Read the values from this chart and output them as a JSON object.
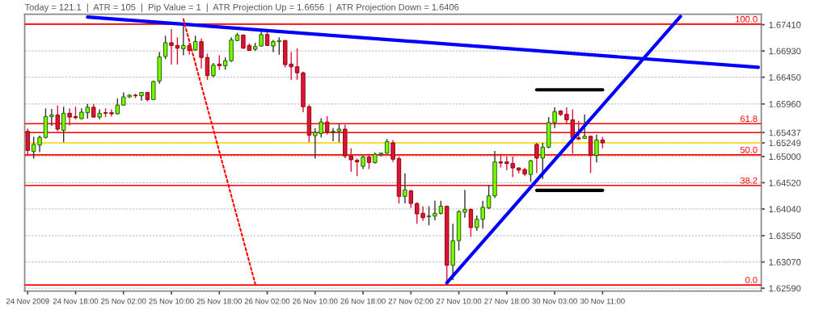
{
  "chart_data": {
    "type": "candlestick",
    "title": "Today = 121.1  |  ATR = 105  |  Pip Value = 1  |  ATR Projection Up = 1.6656  |  ATR Projection Down = 1.6406",
    "categories": [
      "24 Nov 2009",
      null,
      null,
      null,
      null,
      null,
      null,
      null,
      "24 Nov 18:00",
      null,
      null,
      null,
      null,
      null,
      null,
      null,
      "25 Nov 02:00",
      null,
      null,
      null,
      null,
      null,
      null,
      null,
      "25 Nov 10:00",
      null,
      null,
      null,
      null,
      null,
      null,
      null,
      "25 Nov 18:00",
      null,
      null,
      null,
      null,
      null,
      null,
      null,
      "26 Nov 02:00",
      null,
      null,
      null,
      null,
      null,
      null,
      null,
      "26 Nov 10:00",
      null,
      null,
      null,
      null,
      null,
      null,
      null,
      "26 Nov 18:00",
      null,
      null,
      null,
      null,
      null,
      null,
      null,
      "27 Nov 02:00",
      null,
      null,
      null,
      null,
      null,
      null,
      null,
      "27 Nov 10:00",
      null,
      null,
      null,
      null,
      null,
      null,
      null,
      "27 Nov 18:00",
      null,
      null,
      null,
      null,
      null,
      null,
      null,
      "30 Nov 03:00",
      null,
      null,
      null,
      null,
      null,
      null,
      null,
      "30 Nov 11:00",
      null,
      null,
      null,
      null,
      null,
      null,
      null,
      null,
      null,
      null,
      null,
      null,
      null,
      null,
      null,
      null,
      null,
      null,
      null,
      null,
      null,
      null,
      null,
      null,
      null,
      null
    ],
    "ohlc": [
      [
        1.6546,
        1.6551,
        1.6501,
        1.6511
      ],
      [
        1.6509,
        1.6536,
        1.6496,
        1.6522
      ],
      [
        1.6521,
        1.6538,
        1.6508,
        1.6535
      ],
      [
        1.6535,
        1.6588,
        1.6533,
        1.6573
      ],
      [
        1.6573,
        1.6587,
        1.6556,
        1.6576
      ],
      [
        1.6576,
        1.6593,
        1.6546,
        1.655
      ],
      [
        1.6548,
        1.6591,
        1.6526,
        1.6579
      ],
      [
        1.6579,
        1.6588,
        1.6557,
        1.6572
      ],
      [
        1.6573,
        1.6591,
        1.6568,
        1.6571
      ],
      [
        1.6569,
        1.6588,
        1.6568,
        1.6581
      ],
      [
        1.658,
        1.6596,
        1.6569,
        1.659
      ],
      [
        1.659,
        1.6596,
        1.6571,
        1.6572
      ],
      [
        1.6572,
        1.6586,
        1.6568,
        1.6579
      ],
      [
        1.658,
        1.6588,
        1.6572,
        1.6579
      ],
      [
        1.658,
        1.6586,
        1.6573,
        1.6578
      ],
      [
        1.6578,
        1.6606,
        1.6577,
        1.6594
      ],
      [
        1.6594,
        1.6617,
        1.6593,
        1.6609
      ],
      [
        1.6609,
        1.6614,
        1.6607,
        1.6612
      ],
      [
        1.6612,
        1.6615,
        1.6607,
        1.6611
      ],
      [
        1.6611,
        1.6618,
        1.6602,
        1.6617
      ],
      [
        1.6617,
        1.6618,
        1.6601,
        1.6604
      ],
      [
        1.6604,
        1.6639,
        1.6603,
        1.6637
      ],
      [
        1.6638,
        1.6691,
        1.6633,
        1.6682
      ],
      [
        1.6683,
        1.6721,
        1.6678,
        1.6708
      ],
      [
        1.6708,
        1.6733,
        1.6668,
        1.6703
      ],
      [
        1.6703,
        1.6718,
        1.6668,
        1.6698
      ],
      [
        1.6697,
        1.6743,
        1.6685,
        1.6703
      ],
      [
        1.6703,
        1.6708,
        1.6686,
        1.6694
      ],
      [
        1.6695,
        1.6721,
        1.6693,
        1.671
      ],
      [
        1.671,
        1.6716,
        1.6661,
        1.6681
      ],
      [
        1.6681,
        1.6688,
        1.664,
        1.6648
      ],
      [
        1.6648,
        1.6671,
        1.6645,
        1.6667
      ],
      [
        1.6669,
        1.6685,
        1.6658,
        1.6666
      ],
      [
        1.6666,
        1.6681,
        1.6659,
        1.6675
      ],
      [
        1.6675,
        1.6718,
        1.6673,
        1.6713
      ],
      [
        1.6712,
        1.6726,
        1.6711,
        1.6722
      ],
      [
        1.6722,
        1.6723,
        1.6697,
        1.6698
      ],
      [
        1.6703,
        1.6707,
        1.6693,
        1.6694
      ],
      [
        1.6696,
        1.6708,
        1.6693,
        1.6701
      ],
      [
        1.6702,
        1.6731,
        1.6701,
        1.6723
      ],
      [
        1.6723,
        1.6731,
        1.6702,
        1.6703
      ],
      [
        1.6702,
        1.6713,
        1.6691,
        1.671
      ],
      [
        1.671,
        1.6718,
        1.6686,
        1.6712
      ],
      [
        1.6712,
        1.6713,
        1.6663,
        1.6668
      ],
      [
        1.6669,
        1.6691,
        1.664,
        1.6664
      ],
      [
        1.6664,
        1.6698,
        1.664,
        1.6653
      ],
      [
        1.6653,
        1.6655,
        1.6581,
        1.6591
      ],
      [
        1.6591,
        1.6595,
        1.6526,
        1.6539
      ],
      [
        1.6538,
        1.6552,
        1.6496,
        1.6544
      ],
      [
        1.6542,
        1.657,
        1.6535,
        1.6563
      ],
      [
        1.6563,
        1.6574,
        1.654,
        1.6545
      ],
      [
        1.6545,
        1.6552,
        1.6528,
        1.6546
      ],
      [
        1.6546,
        1.656,
        1.6526,
        1.655
      ],
      [
        1.655,
        1.6558,
        1.6497,
        1.6501
      ],
      [
        1.6501,
        1.6515,
        1.6472,
        1.6494
      ],
      [
        1.6493,
        1.6496,
        1.6464,
        1.649
      ],
      [
        1.6482,
        1.6502,
        1.6477,
        1.6499
      ],
      [
        1.6499,
        1.6505,
        1.6477,
        1.6489
      ],
      [
        1.6489,
        1.6507,
        1.6487,
        1.6504
      ],
      [
        1.6504,
        1.6507,
        1.65,
        1.6506
      ],
      [
        1.6506,
        1.6532,
        1.6505,
        1.6527
      ],
      [
        1.6525,
        1.653,
        1.649,
        1.6495
      ],
      [
        1.6496,
        1.65,
        1.6414,
        1.6427
      ],
      [
        1.6427,
        1.6469,
        1.6414,
        1.6439
      ],
      [
        1.6437,
        1.6439,
        1.6406,
        1.6414
      ],
      [
        1.6414,
        1.6416,
        1.6377,
        1.6395
      ],
      [
        1.6396,
        1.6409,
        1.6382,
        1.6388
      ],
      [
        1.639,
        1.6409,
        1.6374,
        1.6391
      ],
      [
        1.6391,
        1.6419,
        1.6383,
        1.6396
      ],
      [
        1.6396,
        1.6419,
        1.6394,
        1.6409
      ],
      [
        1.6409,
        1.641,
        1.6266,
        1.6301
      ],
      [
        1.6301,
        1.6377,
        1.6274,
        1.6346
      ],
      [
        1.6346,
        1.6402,
        1.6328,
        1.6399
      ],
      [
        1.6398,
        1.6439,
        1.6388,
        1.6403
      ],
      [
        1.6403,
        1.6405,
        1.6353,
        1.637
      ],
      [
        1.637,
        1.6392,
        1.6364,
        1.6385
      ],
      [
        1.6385,
        1.6419,
        1.6368,
        1.6407
      ],
      [
        1.6406,
        1.6447,
        1.6404,
        1.6428
      ],
      [
        1.6428,
        1.651,
        1.6424,
        1.649
      ],
      [
        1.649,
        1.6505,
        1.648,
        1.6488
      ],
      [
        1.649,
        1.65,
        1.6475,
        1.6487
      ],
      [
        1.6487,
        1.65,
        1.6462,
        1.6479
      ],
      [
        1.6479,
        1.648,
        1.6469,
        1.6475
      ],
      [
        1.6476,
        1.6479,
        1.6464,
        1.6468
      ],
      [
        1.6467,
        1.6494,
        1.6454,
        1.6492
      ],
      [
        1.6522,
        1.6525,
        1.647,
        1.6497
      ],
      [
        1.6497,
        1.6525,
        1.6459,
        1.6517
      ],
      [
        1.6517,
        1.6572,
        1.6515,
        1.6562
      ],
      [
        1.6562,
        1.659,
        1.6552,
        1.6582
      ],
      [
        1.6583,
        1.6585,
        1.6574,
        1.6577
      ],
      [
        1.6577,
        1.659,
        1.656,
        1.6567
      ],
      [
        1.6567,
        1.6586,
        1.6505,
        1.6534
      ],
      [
        1.6534,
        1.6565,
        1.653,
        1.6532
      ],
      [
        1.6533,
        1.6577,
        1.6532,
        1.6537
      ],
      [
        1.6537,
        1.6537,
        1.647,
        1.6502
      ],
      [
        1.6502,
        1.654,
        1.6489,
        1.653
      ],
      [
        1.653,
        1.6536,
        1.6515,
        1.6525
      ],
      null,
      null,
      null,
      null,
      null,
      null,
      null,
      null,
      null,
      null,
      null,
      null,
      null,
      null,
      null,
      null,
      null,
      null,
      null,
      null,
      null,
      null,
      null,
      null,
      null,
      null
    ],
    "colors": [
      "#dc143c",
      "#7cfc00",
      "#7cfc00",
      "#7cfc00",
      "#7cfc00",
      "#dc143c",
      "#7cfc00",
      "#dc143c",
      "#dc143c",
      "#7cfc00",
      "#7cfc00",
      "#dc143c",
      "#7cfc00",
      "#dc143c",
      "#dc143c",
      "#7cfc00",
      "#7cfc00",
      "#7cfc00",
      "#dc143c",
      "#7cfc00",
      "#dc143c",
      "#7cfc00",
      "#7cfc00",
      "#7cfc00",
      "#dc143c",
      "#dc143c",
      "#7cfc00",
      "#dc143c",
      "#7cfc00",
      "#dc143c",
      "#dc143c",
      "#7cfc00",
      "#dc143c",
      "#7cfc00",
      "#7cfc00",
      "#7cfc00",
      "#dc143c",
      "#dc143c",
      "#7cfc00",
      "#7cfc00",
      "#dc143c",
      "#7cfc00",
      "#7cfc00",
      "#dc143c",
      "#dc143c",
      "#dc143c",
      "#dc143c",
      "#dc143c",
      "#7cfc00",
      "#7cfc00",
      "#dc143c",
      "#7cfc00",
      "#7cfc00",
      "#dc143c",
      "#dc143c",
      "#dc143c",
      "#7cfc00",
      "#dc143c",
      "#7cfc00",
      "#7cfc00",
      "#7cfc00",
      "#dc143c",
      "#dc143c",
      "#7cfc00",
      "#dc143c",
      "#dc143c",
      "#dc143c",
      "#7cfc00",
      "#7cfc00",
      "#7cfc00",
      "#dc143c",
      "#7cfc00",
      "#7cfc00",
      "#7cfc00",
      "#dc143c",
      "#7cfc00",
      "#7cfc00",
      "#7cfc00",
      "#7cfc00",
      "#dc143c",
      "#dc143c",
      "#dc143c",
      "#dc143c",
      "#dc143c",
      "#7cfc00",
      "#dc143c",
      "#7cfc00",
      "#7cfc00",
      "#7cfc00",
      "#dc143c",
      "#dc143c",
      "#dc143c",
      "#dc143c",
      "#7cfc00",
      "#dc143c",
      "#7cfc00",
      "#dc143c",
      null,
      null,
      null,
      null,
      null,
      null,
      null,
      null,
      null,
      null,
      null,
      null,
      null,
      null,
      null,
      null,
      null,
      null,
      null,
      null,
      null,
      null,
      null,
      null,
      null,
      null
    ],
    "ylim": [
      1.6254,
      1.676
    ],
    "yticks": [
      {
        "value": 1.6259,
        "label": "1.62590"
      },
      {
        "value": 1.6307,
        "label": "1.63070"
      },
      {
        "value": 1.6355,
        "label": "1.63550"
      },
      {
        "value": 1.6404,
        "label": "1.64040"
      },
      {
        "value": 1.6452,
        "label": "1.64520"
      },
      {
        "value": 1.65,
        "label": "1.65000"
      },
      {
        "value": 1.65249,
        "label": "1.65249"
      },
      {
        "value": 1.65437,
        "label": "1.65437"
      },
      {
        "value": 1.6596,
        "label": "1.65960"
      },
      {
        "value": 1.6645,
        "label": "1.66450"
      },
      {
        "value": 1.6693,
        "label": "1.66930"
      },
      {
        "value": 1.6741,
        "label": "1.67410"
      }
    ],
    "grid": "y",
    "series": [
      {
        "type": "line",
        "color": "#0000ff",
        "values": [
          null,
          null,
          null,
          null,
          null,
          null,
          null,
          null,
          null,
          null,
          1.6755,
          null,
          null,
          null,
          null,
          null,
          null,
          null,
          null,
          null,
          null,
          null,
          null,
          null,
          null,
          null,
          null,
          null,
          null,
          null,
          null,
          null,
          null,
          null,
          null,
          null,
          null,
          null,
          null,
          null,
          null,
          null,
          null,
          null,
          null,
          null,
          null,
          null,
          null,
          null,
          null,
          null,
          null,
          null,
          null,
          null,
          null,
          null,
          null,
          null,
          null,
          null,
          null,
          null,
          null,
          null,
          null,
          null,
          null,
          null,
          null,
          null,
          null,
          null,
          null,
          null,
          null,
          null,
          null,
          null,
          null,
          null,
          null,
          null,
          null,
          null,
          null,
          null,
          null,
          null,
          null,
          null,
          null,
          null,
          null,
          null,
          null,
          null,
          null,
          null,
          null,
          null,
          null,
          null,
          null,
          null,
          null,
          null,
          null,
          null,
          null,
          null,
          null,
          null,
          null,
          null,
          null,
          null,
          null,
          null,
          null,
          null,
          1.6663
        ]
      },
      {
        "type": "line",
        "color": "#0000ff",
        "values": [
          null,
          null,
          null,
          null,
          null,
          null,
          null,
          null,
          null,
          null,
          null,
          null,
          null,
          null,
          null,
          null,
          null,
          null,
          null,
          null,
          null,
          null,
          null,
          null,
          null,
          null,
          null,
          null,
          null,
          null,
          null,
          null,
          null,
          null,
          null,
          null,
          null,
          null,
          null,
          null,
          null,
          null,
          null,
          null,
          null,
          null,
          null,
          null,
          null,
          null,
          null,
          null,
          null,
          null,
          null,
          null,
          null,
          null,
          null,
          null,
          null,
          null,
          null,
          null,
          null,
          null,
          null,
          null,
          null,
          null,
          1.6269,
          null,
          null,
          null,
          null,
          null,
          null,
          null,
          null,
          null,
          null,
          null,
          null,
          null,
          null,
          null,
          null,
          null,
          null,
          null,
          null,
          null,
          null,
          null,
          null,
          null,
          null,
          null,
          null,
          null,
          null,
          null,
          null,
          null,
          null,
          null,
          null,
          null,
          null,
          1.6756,
          null,
          null,
          null,
          null,
          null,
          null,
          null,
          null,
          null,
          null,
          null,
          null,
          null
        ]
      },
      {
        "type": "line",
        "color": "#ff0000",
        "line_style": "dotted",
        "values": [
          null,
          null,
          null,
          null,
          null,
          null,
          null,
          null,
          null,
          null,
          null,
          null,
          null,
          null,
          null,
          null,
          null,
          null,
          null,
          null,
          null,
          null,
          null,
          null,
          null,
          null,
          1.6751,
          null,
          null,
          null,
          null,
          null,
          null,
          null,
          null,
          null,
          null,
          null,
          1.6267,
          null,
          null,
          null,
          null,
          null,
          null,
          null,
          null,
          null,
          null,
          null,
          null,
          null,
          null,
          null,
          null,
          null,
          null,
          null,
          null,
          null,
          null,
          null,
          null,
          null,
          null,
          null,
          null,
          null,
          null,
          null,
          null,
          null,
          null,
          null,
          null,
          null,
          null,
          null,
          null,
          null,
          null,
          null,
          null,
          null,
          null,
          null,
          null,
          null,
          null,
          null,
          null,
          null,
          null,
          null,
          null,
          null,
          null,
          null,
          null,
          null,
          null,
          null,
          null,
          null,
          null,
          null,
          null,
          null,
          null,
          null,
          null,
          null,
          null,
          null,
          null,
          null,
          null,
          null,
          null,
          null,
          null,
          null,
          null
        ]
      },
      {
        "type": "line",
        "color": "#000000",
        "values": [
          null,
          null,
          null,
          null,
          null,
          null,
          null,
          null,
          null,
          null,
          null,
          null,
          null,
          null,
          null,
          null,
          null,
          null,
          null,
          null,
          null,
          null,
          null,
          null,
          null,
          null,
          null,
          null,
          null,
          null,
          null,
          null,
          null,
          null,
          null,
          null,
          null,
          null,
          null,
          null,
          null,
          null,
          null,
          null,
          null,
          null,
          null,
          null,
          null,
          null,
          null,
          null,
          null,
          null,
          null,
          null,
          null,
          null,
          null,
          null,
          null,
          null,
          null,
          null,
          null,
          null,
          null,
          null,
          null,
          null,
          null,
          null,
          null,
          null,
          null,
          null,
          null,
          null,
          null,
          null,
          null,
          null,
          null,
          null,
          null,
          1.6622,
          null,
          null,
          null,
          null,
          null,
          null,
          null,
          null,
          null,
          null,
          1.6622,
          null,
          null,
          null,
          null,
          null,
          null,
          null,
          null,
          null,
          null,
          null,
          null,
          null,
          null,
          null,
          null,
          null,
          null,
          null,
          null,
          null,
          null,
          null,
          null,
          null,
          null
        ]
      },
      {
        "type": "line",
        "color": "#000000",
        "values": [
          null,
          null,
          null,
          null,
          null,
          null,
          null,
          null,
          null,
          null,
          null,
          null,
          null,
          null,
          null,
          null,
          null,
          null,
          null,
          null,
          null,
          null,
          null,
          null,
          null,
          null,
          null,
          null,
          null,
          null,
          null,
          null,
          null,
          null,
          null,
          null,
          null,
          null,
          null,
          null,
          null,
          null,
          null,
          null,
          null,
          null,
          null,
          null,
          null,
          null,
          null,
          null,
          null,
          null,
          null,
          null,
          null,
          null,
          null,
          null,
          null,
          null,
          null,
          null,
          null,
          null,
          null,
          null,
          null,
          null,
          null,
          null,
          null,
          null,
          null,
          null,
          null,
          null,
          null,
          null,
          null,
          null,
          null,
          null,
          null,
          1.6438,
          null,
          null,
          null,
          null,
          null,
          null,
          null,
          null,
          null,
          null,
          1.6438,
          null,
          null,
          null,
          null,
          null,
          null,
          null,
          null,
          null,
          null,
          null,
          null,
          null,
          null,
          null,
          null,
          null,
          null,
          null,
          null,
          null,
          null,
          null,
          null,
          null,
          null
        ]
      }
    ],
    "annotations": [
      {
        "text": "100.0",
        "y": 1.6742
      },
      {
        "text": "61.8",
        "y": 1.656
      },
      {
        "text": "50.0",
        "y": 1.6503
      },
      {
        "text": "38.2",
        "y": 1.6447
      },
      {
        "text": "0.0",
        "y": 1.6265
      }
    ],
    "ref_lines": [
      {
        "axis": "y",
        "value": 1.6742,
        "color": "#ff0000"
      },
      {
        "axis": "y",
        "value": 1.656,
        "color": "#ff0000"
      },
      {
        "axis": "y",
        "value": 1.6503,
        "color": "#ff0000"
      },
      {
        "axis": "y",
        "value": 1.6447,
        "color": "#ff0000"
      },
      {
        "axis": "y",
        "value": 1.6265,
        "color": "#ff0000"
      },
      {
        "axis": "y",
        "value": 1.65437,
        "color": "#ff0000"
      },
      {
        "axis": "y",
        "value": 1.65249,
        "color": "#ffd700"
      }
    ]
  }
}
